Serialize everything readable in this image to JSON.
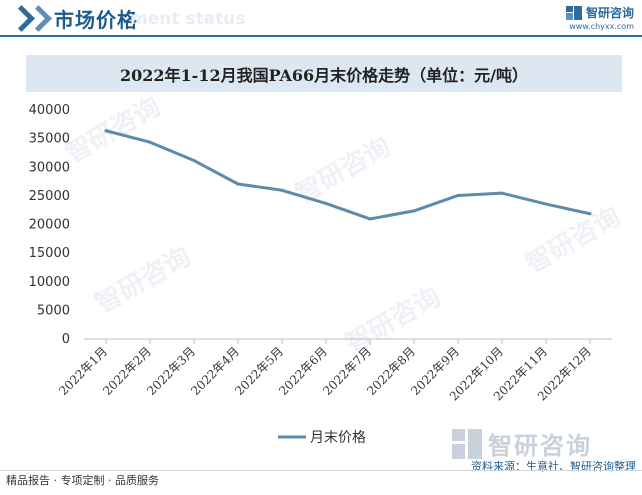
{
  "header": {
    "title": "市场价格",
    "ghost_text": "ment status",
    "brand_name": "智研咨询",
    "brand_url": "www.chyxx.com"
  },
  "chart_data": {
    "type": "line",
    "title": "2022年1-12月我国PA66月末价格走势（单位：元/吨）",
    "categories": [
      "2022年1月",
      "2022年2月",
      "2022年3月",
      "2022年4月",
      "2022年5月",
      "2022年6月",
      "2022年7月",
      "2022年8月",
      "2022年9月",
      "2022年10月",
      "2022年11月",
      "2022年12月"
    ],
    "series": [
      {
        "name": "月末价格",
        "values": [
          36200,
          34200,
          31000,
          26900,
          25800,
          23500,
          20800,
          22200,
          24900,
          25300,
          23400,
          21700
        ]
      }
    ],
    "ylim": [
      0,
      40000
    ],
    "yticks": [
      0,
      5000,
      10000,
      15000,
      20000,
      25000,
      30000,
      35000,
      40000
    ],
    "grid": false,
    "legend_position": "bottom",
    "line_color": "#5e8ba6"
  },
  "footer": {
    "left_text": "精品报告 · 专项定制 · 品质服务",
    "source_text": "资料来源：生意社、智研咨询整理",
    "watermark_text": "智研咨询"
  },
  "colors": {
    "brand": "#1e5b8c",
    "title_box": "#dce7f2"
  }
}
